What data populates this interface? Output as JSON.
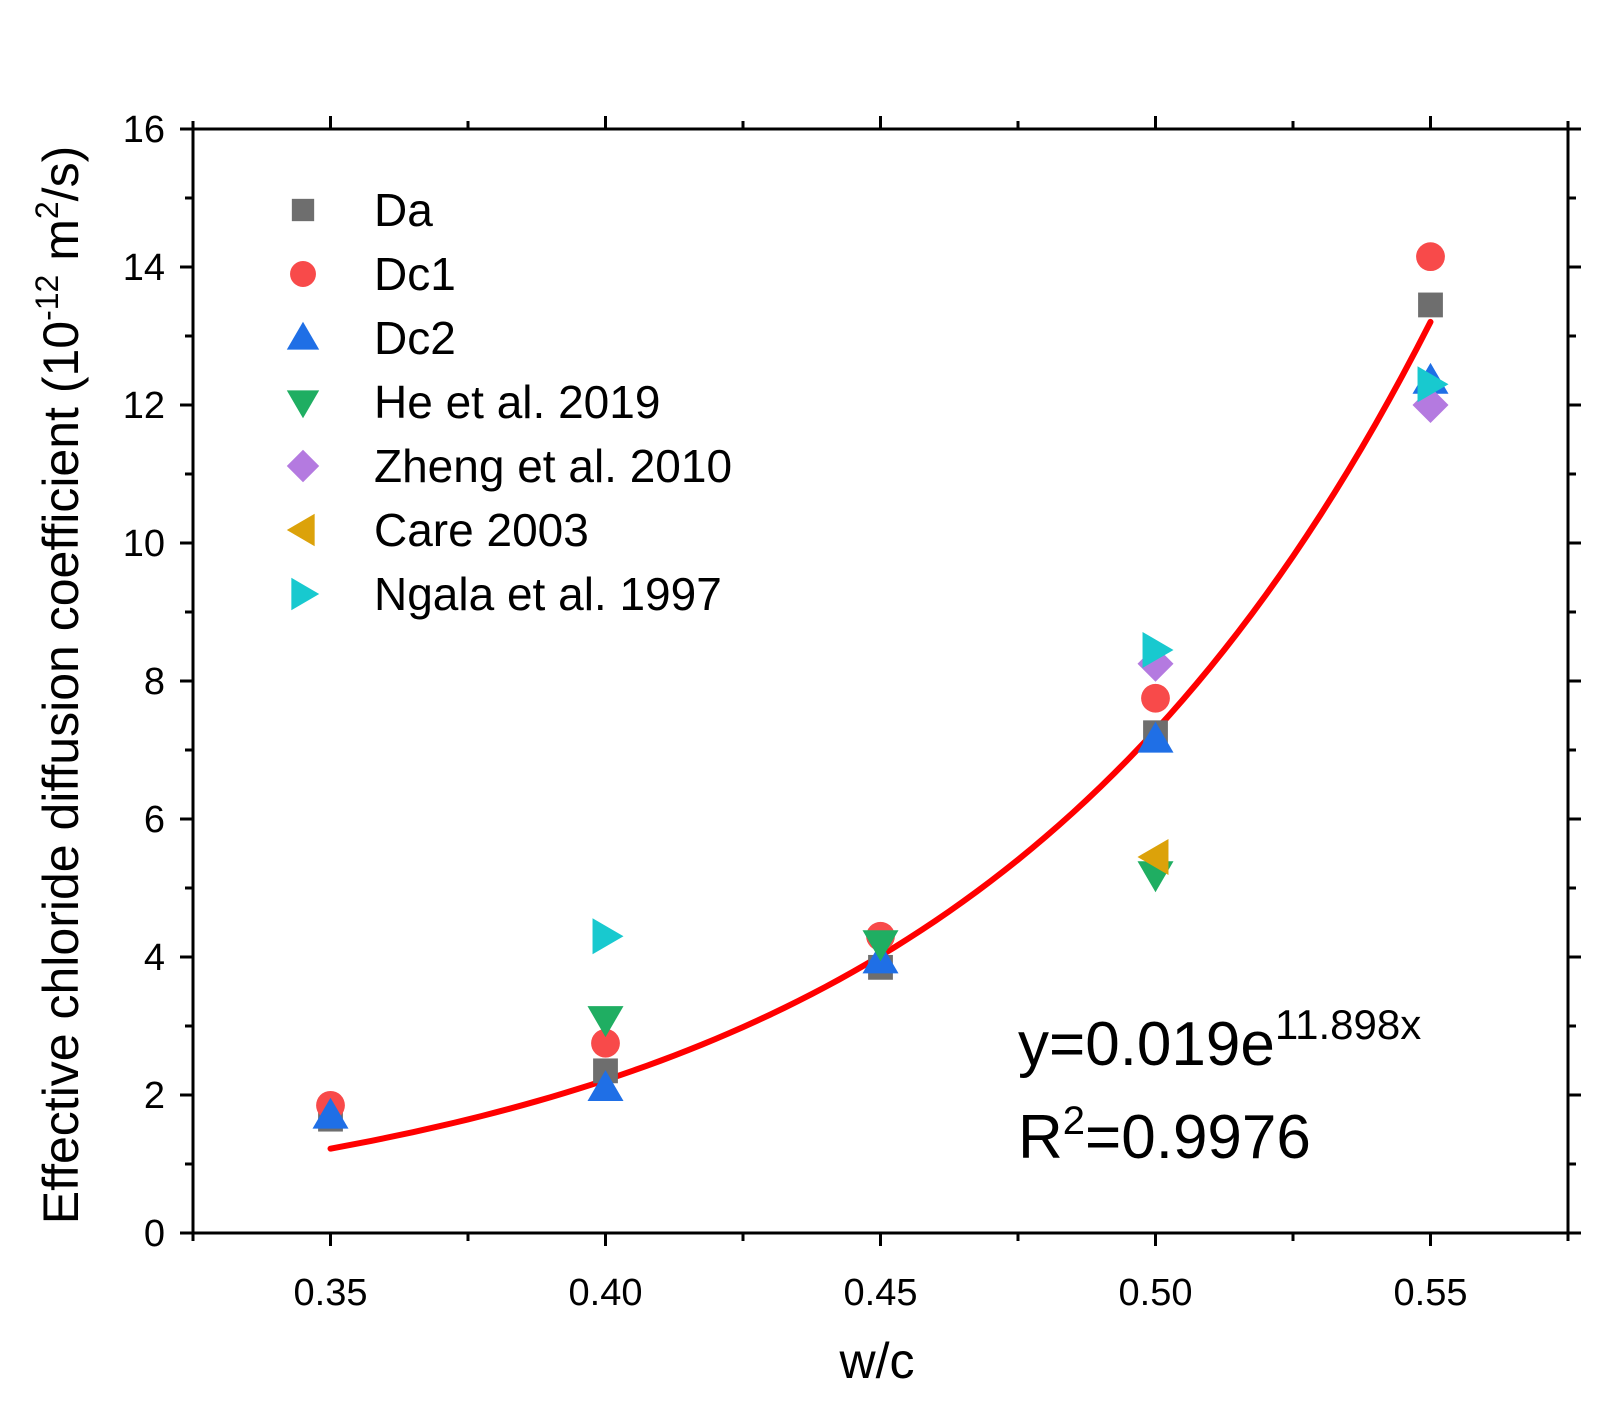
{
  "chart_data": {
    "type": "scatter",
    "xlabel": "w/c",
    "ylabel": {
      "prefix": "Effective chloride diffusion coefficient (10",
      "exp": "-12",
      "middle": " m",
      "exp2": "2",
      "suffix": "/s)"
    },
    "xlim": [
      0.325,
      0.575
    ],
    "ylim": [
      0,
      16
    ],
    "x_ticks": [
      0.35,
      0.4,
      0.45,
      0.5,
      0.55
    ],
    "x_tick_labels": [
      "0.35",
      "0.40",
      "0.45",
      "0.50",
      "0.55"
    ],
    "y_ticks": [
      0,
      2,
      4,
      6,
      8,
      10,
      12,
      14,
      16
    ],
    "y_tick_labels": [
      "0",
      "2",
      "4",
      "6",
      "8",
      "10",
      "12",
      "14",
      "16"
    ],
    "grid": false,
    "legend_position": "top-left",
    "series": [
      {
        "name": "Da",
        "marker": "square",
        "color": "#6e6e6e",
        "points": [
          [
            0.35,
            1.65
          ],
          [
            0.4,
            2.35
          ],
          [
            0.45,
            3.85
          ],
          [
            0.5,
            7.25
          ],
          [
            0.55,
            13.45
          ]
        ]
      },
      {
        "name": "Dc1",
        "marker": "circle",
        "color": "#f84a4a",
        "points": [
          [
            0.35,
            1.85
          ],
          [
            0.4,
            2.75
          ],
          [
            0.45,
            4.3
          ],
          [
            0.5,
            7.75
          ],
          [
            0.55,
            14.15
          ]
        ]
      },
      {
        "name": "Dc2",
        "marker": "triangle-up",
        "color": "#1f6fe6",
        "points": [
          [
            0.35,
            1.7
          ],
          [
            0.4,
            2.1
          ],
          [
            0.45,
            3.95
          ],
          [
            0.5,
            7.15
          ],
          [
            0.55,
            12.35
          ]
        ]
      },
      {
        "name": "He et al. 2019",
        "marker": "triangle-down",
        "color": "#1fae62",
        "points": [
          [
            0.4,
            3.1
          ],
          [
            0.45,
            4.2
          ],
          [
            0.5,
            5.2
          ]
        ]
      },
      {
        "name": "Zheng et al. 2010",
        "marker": "diamond",
        "color": "#b47ae0",
        "points": [
          [
            0.5,
            8.25
          ],
          [
            0.55,
            12.0
          ]
        ]
      },
      {
        "name": "Care 2003",
        "marker": "triangle-left",
        "color": "#dca20a",
        "points": [
          [
            0.5,
            5.45
          ]
        ]
      },
      {
        "name": "Ngala et al. 1997",
        "marker": "triangle-right",
        "color": "#18c9cf",
        "points": [
          [
            0.4,
            4.3
          ],
          [
            0.5,
            8.45
          ],
          [
            0.55,
            12.3
          ]
        ]
      }
    ],
    "fit": {
      "type": "exponential",
      "a": 0.019,
      "b": 11.898,
      "x_range": [
        0.35,
        0.55
      ],
      "color": "#ff0000"
    },
    "annotation": {
      "equation_base": "y=0.019e",
      "equation_exp": "11.898x",
      "r2_base": "R",
      "r2_exp": "2",
      "r2_value": "=0.9976"
    }
  }
}
